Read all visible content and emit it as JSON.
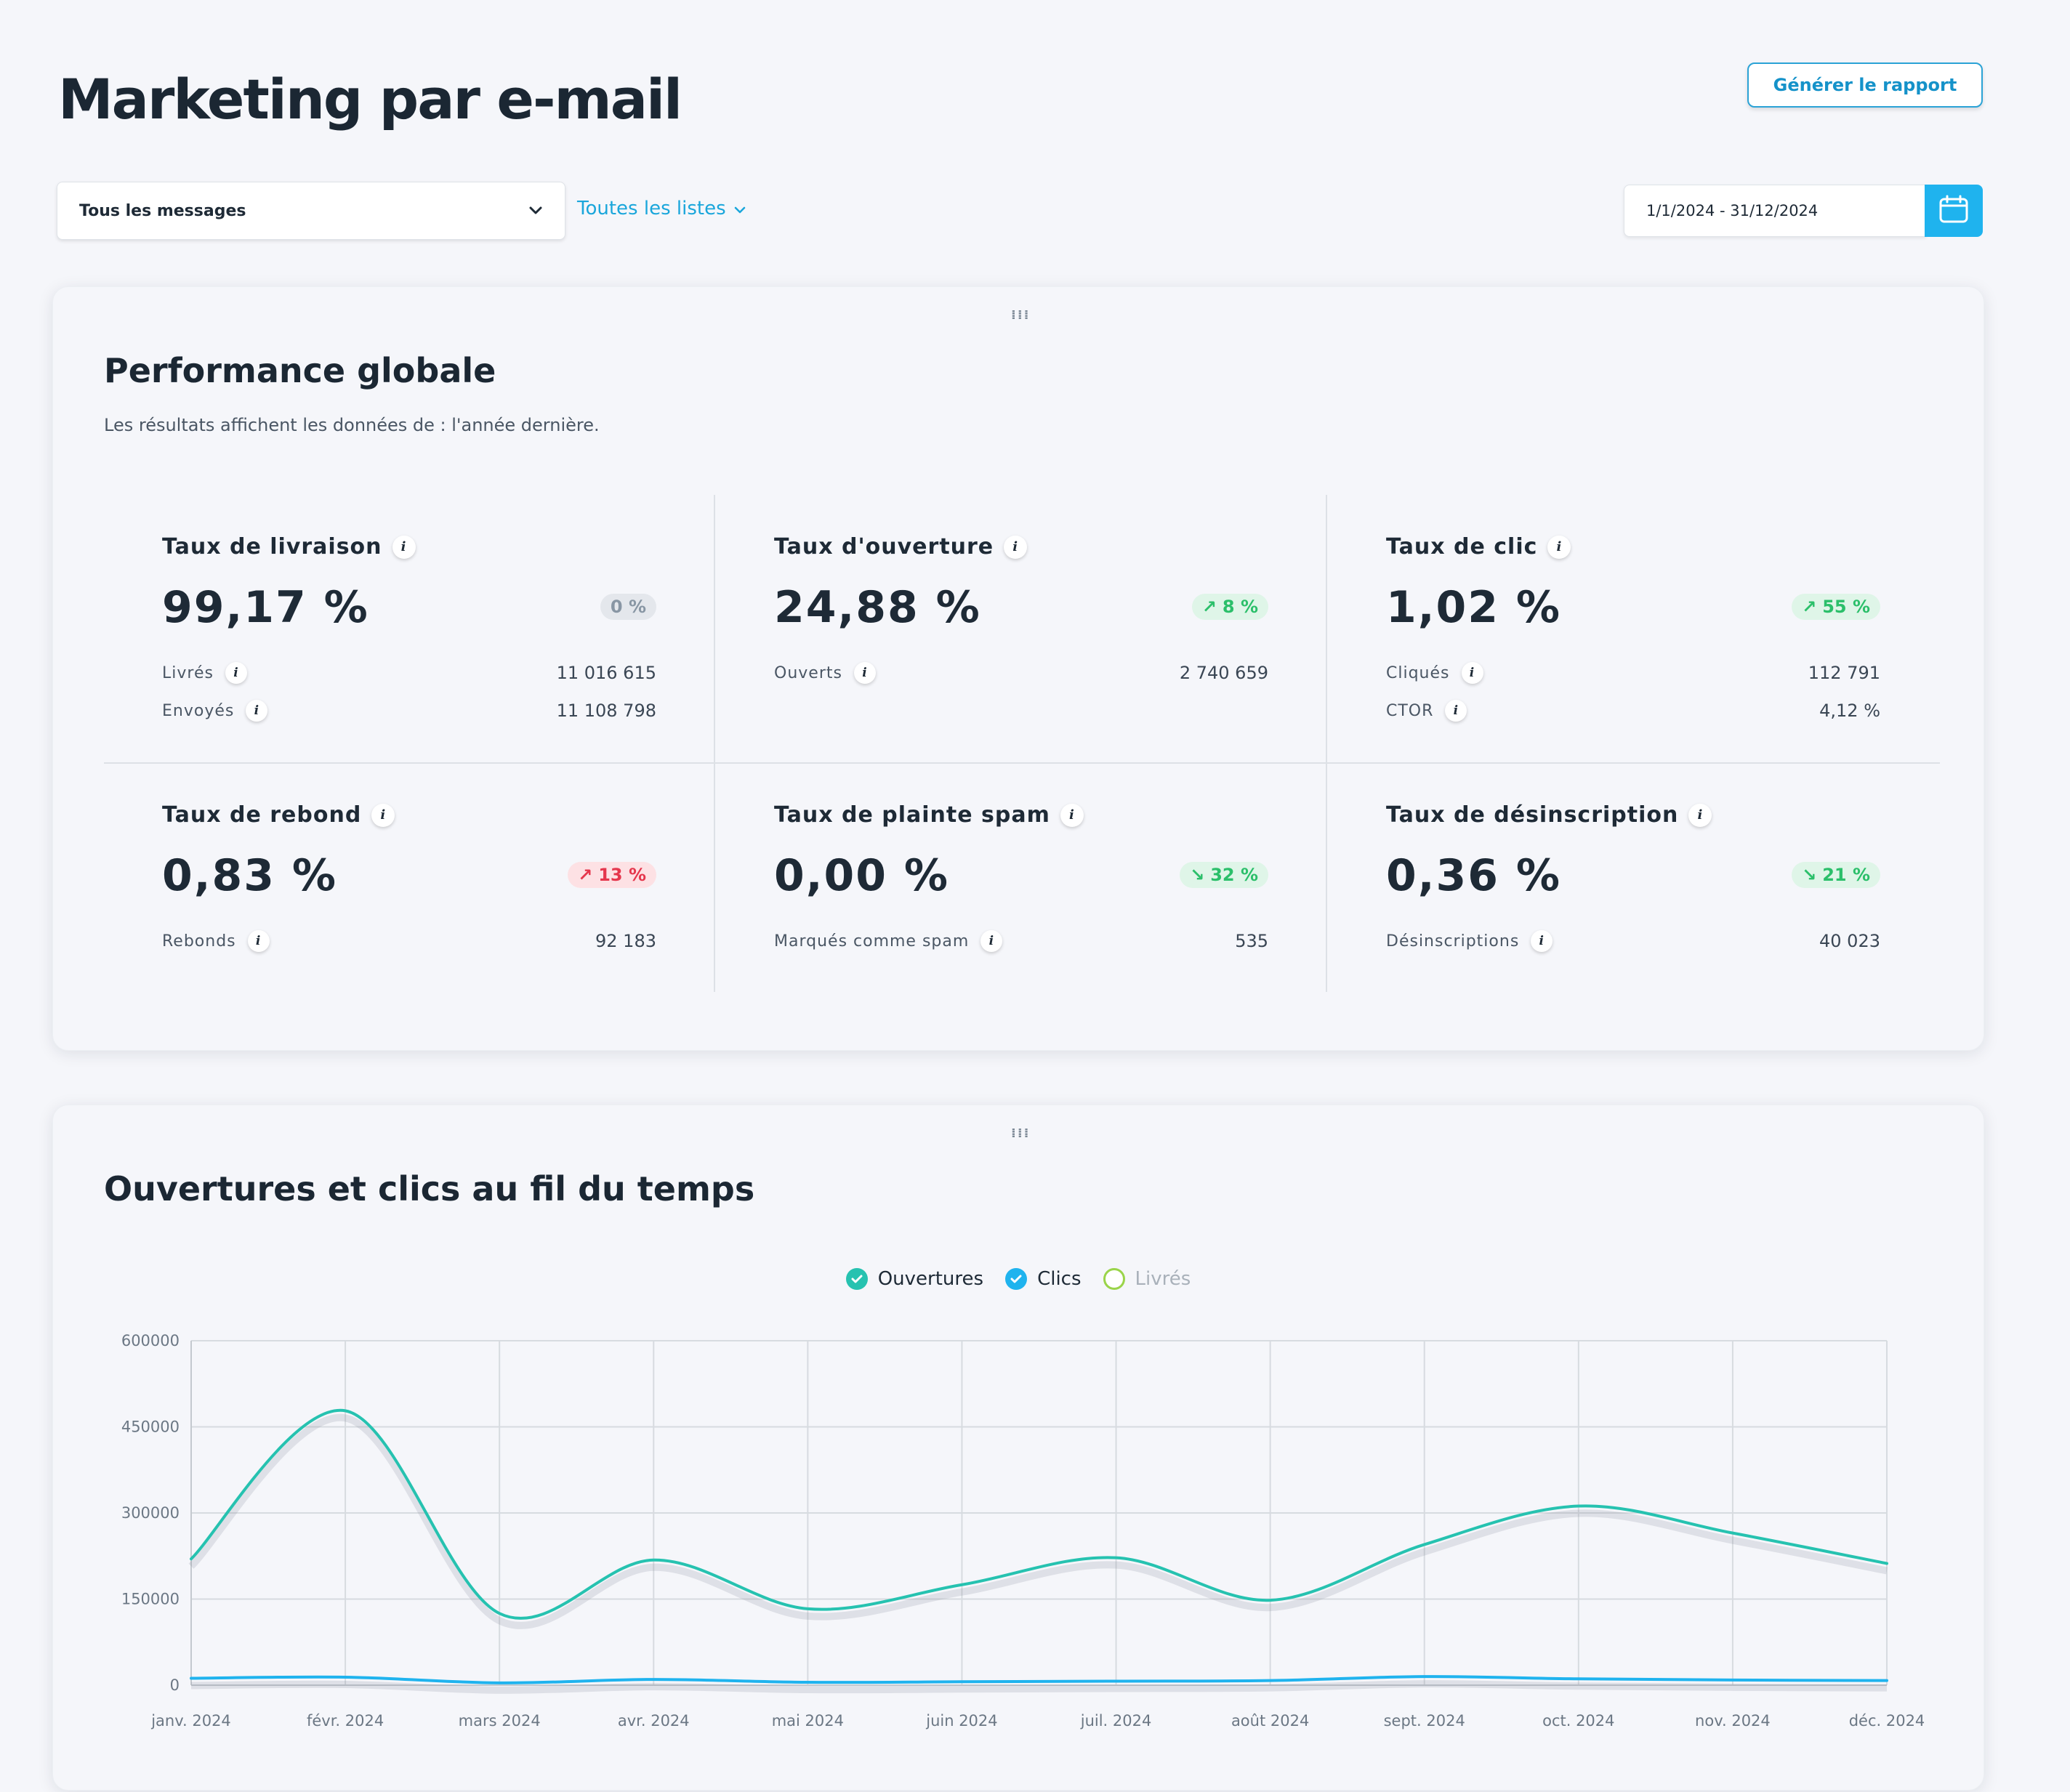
{
  "header": {
    "title": "Marketing par e-mail",
    "report_button": "Générer le rapport"
  },
  "filters": {
    "message_select": "Tous les messages",
    "lists_link": "Toutes les listes",
    "date_range": "1/1/2024 - 31/12/2024"
  },
  "performance": {
    "title": "Performance globale",
    "subtitle": "Les résultats affichent les données de : l'année dernière.",
    "metrics": [
      {
        "title": "Taux de livraison",
        "value": "99,17 %",
        "badge": "0 %",
        "trend": "neutral",
        "rows": [
          {
            "label": "Livrés",
            "value": "11 016 615"
          },
          {
            "label": "Envoyés",
            "value": "11 108 798"
          }
        ]
      },
      {
        "title": "Taux d'ouverture",
        "value": "24,88 %",
        "badge": "8 %",
        "trend": "up-good",
        "rows": [
          {
            "label": "Ouverts",
            "value": "2 740 659"
          }
        ]
      },
      {
        "title": "Taux de clic",
        "value": "1,02 %",
        "badge": "55 %",
        "trend": "up-good",
        "rows": [
          {
            "label": "Cliqués",
            "value": "112 791"
          },
          {
            "label": "CTOR",
            "value": "4,12 %"
          }
        ]
      },
      {
        "title": "Taux de rebond",
        "value": "0,83 %",
        "badge": "13 %",
        "trend": "up-bad",
        "rows": [
          {
            "label": "Rebonds",
            "value": "92 183"
          }
        ]
      },
      {
        "title": "Taux de plainte spam",
        "value": "0,00 %",
        "badge": "32 %",
        "trend": "down-good",
        "rows": [
          {
            "label": "Marqués comme spam",
            "value": "535"
          }
        ]
      },
      {
        "title": "Taux de désinscription",
        "value": "0,36 %",
        "badge": "21 %",
        "trend": "down-good",
        "rows": [
          {
            "label": "Désinscriptions",
            "value": "40 023"
          }
        ]
      }
    ]
  },
  "chart_section": {
    "title": "Ouvertures et clics au fil du temps",
    "legend": [
      {
        "name": "Ouvertures",
        "color": "#26c2b0",
        "active": true
      },
      {
        "name": "Clics",
        "color": "#1fb3ee",
        "active": true
      },
      {
        "name": "Livrés",
        "color": "#9ad44a",
        "active": false
      }
    ]
  },
  "chart_data": {
    "type": "line",
    "categories": [
      "janv. 2024",
      "févr. 2024",
      "mars 2024",
      "avr. 2024",
      "mai 2024",
      "juin 2024",
      "juil. 2024",
      "août 2024",
      "sept. 2024",
      "oct. 2024",
      "nov. 2024",
      "déc. 2024"
    ],
    "series": [
      {
        "name": "Ouvertures",
        "color": "#26c2b0",
        "values": [
          220000,
          478000,
          125000,
          218000,
          133000,
          175000,
          222000,
          148000,
          245000,
          312000,
          265000,
          212000
        ]
      },
      {
        "name": "Clics",
        "color": "#1fb3ee",
        "values": [
          12000,
          14000,
          4000,
          10000,
          5000,
          6000,
          7000,
          8000,
          15000,
          11000,
          9000,
          8000
        ]
      }
    ],
    "y_ticks": [
      0,
      150000,
      300000,
      450000,
      600000
    ],
    "ylim": [
      0,
      600000
    ],
    "grid": true,
    "legend_position": "top-center"
  }
}
